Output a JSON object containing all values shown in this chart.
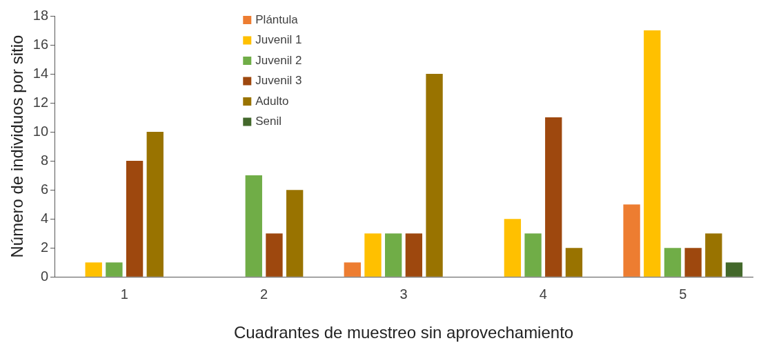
{
  "chart_data": {
    "type": "bar",
    "xlabel": "Cuadrantes de muestreo sin aprovechamiento",
    "ylabel": "Número de individuos por sitio",
    "categories": [
      "1",
      "2",
      "3",
      "4",
      "5"
    ],
    "ylim": [
      0,
      18
    ],
    "yticks": [
      0,
      2,
      4,
      6,
      8,
      10,
      12,
      14,
      16,
      18
    ],
    "grid": false,
    "legend": "top",
    "series": [
      {
        "name": "Plántula",
        "color": "#ed7d31",
        "values": [
          0,
          0,
          1,
          0,
          5
        ]
      },
      {
        "name": "Juvenil 1",
        "color": "#ffc000",
        "values": [
          1,
          0,
          3,
          4,
          17
        ]
      },
      {
        "name": "Juvenil 2",
        "color": "#70ad47",
        "values": [
          1,
          7,
          3,
          3,
          2
        ]
      },
      {
        "name": "Juvenil 3",
        "color": "#9e480e",
        "values": [
          8,
          3,
          3,
          11,
          2
        ]
      },
      {
        "name": "Adulto",
        "color": "#997300",
        "values": [
          10,
          6,
          14,
          2,
          3
        ]
      },
      {
        "name": "Senil",
        "color": "#43682b",
        "values": [
          0,
          0,
          0,
          0,
          1
        ]
      }
    ]
  }
}
